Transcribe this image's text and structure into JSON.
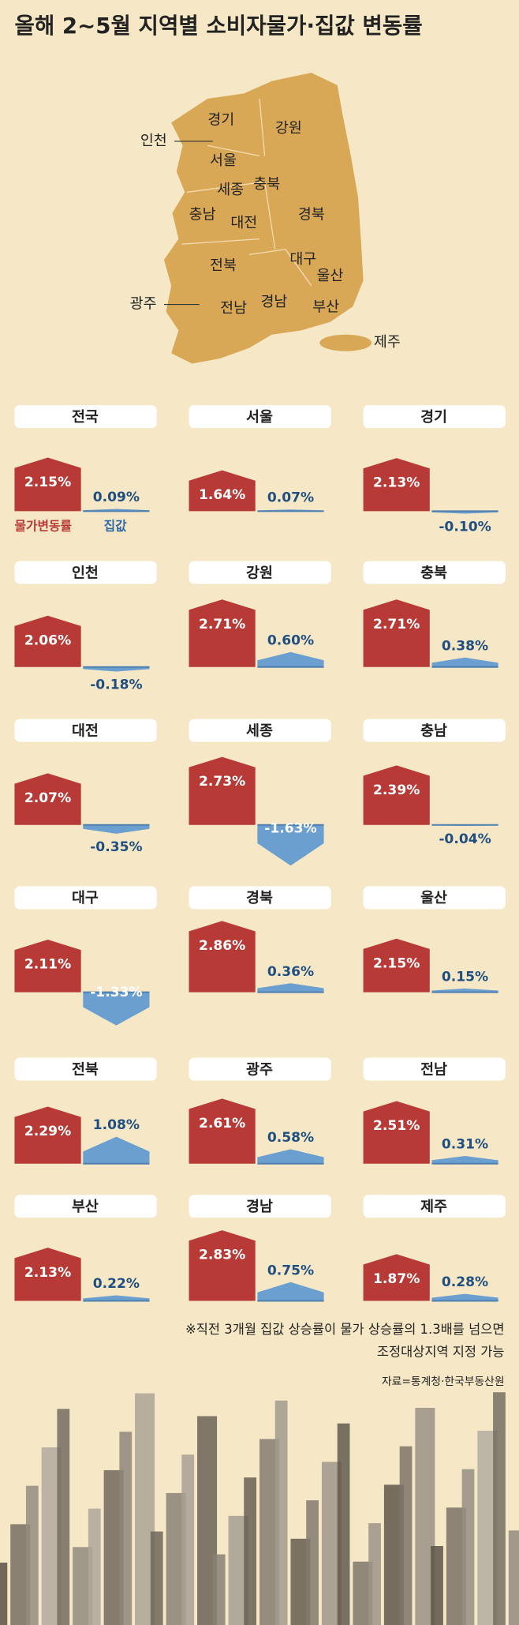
{
  "chart_data": {
    "type": "small-multiples",
    "title": "올해 2~5월 지역별 소비자물가·집값 변동률",
    "categories": [
      "전국",
      "서울",
      "경기",
      "인천",
      "강원",
      "충북",
      "대전",
      "세종",
      "충남",
      "대구",
      "경북",
      "울산",
      "전북",
      "광주",
      "전남",
      "부산",
      "경남",
      "제주"
    ],
    "series": [
      {
        "name": "물가변동률",
        "color": "#b83a36",
        "values": [
          2.15,
          1.64,
          2.13,
          2.06,
          2.71,
          2.71,
          2.07,
          2.73,
          2.39,
          2.11,
          2.86,
          2.15,
          2.29,
          2.61,
          2.51,
          2.13,
          2.83,
          1.87
        ],
        "value_labels": [
          "2.15%",
          "1.64%",
          "2.13%",
          "2.06%",
          "2.71%",
          "2.71%",
          "2.07%",
          "2.73%",
          "2.39%",
          "2.11%",
          "2.86%",
          "2.15%",
          "2.29%",
          "2.61%",
          "2.51%",
          "2.13%",
          "2.83%",
          "1.87%"
        ]
      },
      {
        "name": "집값",
        "color": "#6a9fd0",
        "values": [
          0.09,
          0.07,
          -0.1,
          -0.18,
          0.6,
          0.38,
          -0.35,
          -1.63,
          -0.04,
          -1.33,
          0.36,
          0.15,
          1.08,
          0.58,
          0.31,
          0.22,
          0.75,
          0.28
        ],
        "value_labels": [
          "0.09%",
          "0.07%",
          "-0.10%",
          "-0.18%",
          "0.60%",
          "0.38%",
          "-0.35%",
          "-1.63%",
          "-0.04%",
          "-1.33%",
          "0.36%",
          "0.15%",
          "1.08%",
          "0.58%",
          "0.31%",
          "0.22%",
          "0.75%",
          "0.28%"
        ]
      }
    ],
    "note": [
      "※직전 3개월 집값 상승률이 물가 상승률의 1.3배를 넘으면",
      "조정대상지역 지정 가능"
    ],
    "source": "자료=통계청·한국부동산원"
  },
  "map": {
    "labels": [
      "경기",
      "강원",
      "인천",
      "서울",
      "세종",
      "충북",
      "충남",
      "대전",
      "경북",
      "대구",
      "울산",
      "전북",
      "광주",
      "전남",
      "경남",
      "부산",
      "제주"
    ]
  }
}
